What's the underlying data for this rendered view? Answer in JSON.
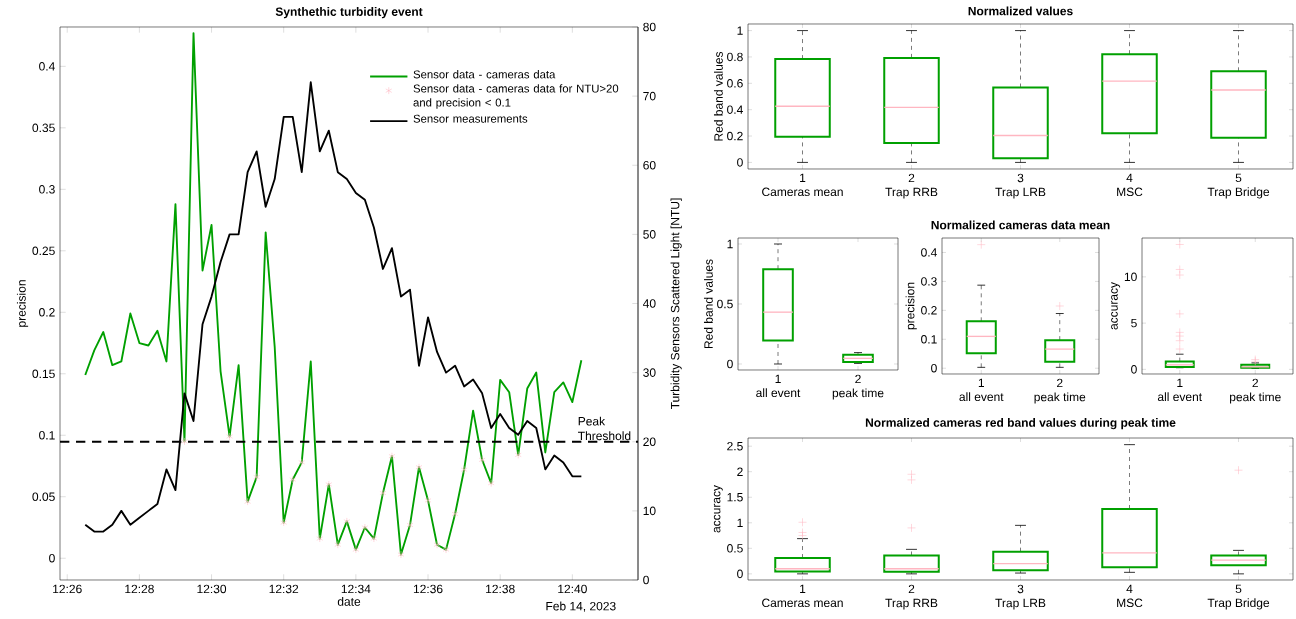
{
  "chart_data": [
    {
      "type": "line",
      "title": "Synthethic turbidity event",
      "xlabel": "date",
      "ylabel": "precision",
      "y2label": "Turbidity Sensors Scattered Light [NTU]",
      "annotations": [
        "Feb 14, 2023"
      ],
      "x": [
        12.44167,
        12.44583,
        12.45,
        12.45417,
        12.45833,
        12.4625,
        12.46667,
        12.47083,
        12.475,
        12.47917,
        12.48333,
        12.4875,
        12.49167,
        12.49583,
        12.5,
        12.50417,
        12.50833,
        12.5125,
        12.51667,
        12.52083,
        12.525,
        12.52917,
        12.53333,
        12.5375,
        12.54167,
        12.54583,
        12.55,
        12.55417,
        12.55833,
        12.5625,
        12.56667,
        12.57083,
        12.575,
        12.57917,
        12.58333,
        12.5875,
        12.59167,
        12.59583,
        12.6,
        12.60417,
        12.60833,
        12.6125,
        12.61667,
        12.62083,
        12.625,
        12.62917,
        12.63333,
        12.6375,
        12.64167,
        12.64583,
        12.65,
        12.65417,
        12.65833,
        12.6625,
        12.66667,
        12.67083
      ],
      "xlim": [
        12.43,
        12.697
      ],
      "xticks": [
        {
          "value": 12.43333,
          "label": "12:26"
        },
        {
          "value": 12.46667,
          "label": "12:28"
        },
        {
          "value": 12.5,
          "label": "12:30"
        },
        {
          "value": 12.53333,
          "label": "12:32"
        },
        {
          "value": 12.56667,
          "label": "12:34"
        },
        {
          "value": 12.6,
          "label": "12:36"
        },
        {
          "value": 12.63333,
          "label": "12:38"
        },
        {
          "value": 12.66667,
          "label": "12:40"
        }
      ],
      "ylim": [
        -0.0177,
        0.432
      ],
      "yticks": [
        0,
        0.05,
        0.1,
        0.15,
        0.2,
        0.25,
        0.3,
        0.35,
        0.4
      ],
      "y2lim": [
        0,
        80
      ],
      "y2ticks": [
        0,
        10,
        20,
        30,
        40,
        50,
        60,
        70,
        80
      ],
      "legend": "top right",
      "ref_lines": [
        {
          "axis": "y2",
          "value": 20,
          "label": "Peak Threshold",
          "color": "#000000",
          "line_style": "dashed"
        }
      ],
      "series": [
        {
          "name": "Sensor data - cameras data",
          "type": "line",
          "color": "#00a000",
          "values": [
            0.149,
            0.169,
            0.184,
            0.157,
            0.16,
            0.199,
            0.175,
            0.173,
            0.185,
            0.16,
            0.288,
            0.095,
            0.427,
            0.234,
            0.271,
            0.152,
            0.099,
            0.157,
            0.046,
            0.066,
            0.265,
            0.172,
            0.029,
            0.064,
            0.078,
            0.16,
            0.016,
            0.06,
            0.011,
            0.03,
            0.007,
            0.025,
            0.016,
            0.053,
            0.083,
            0.003,
            0.027,
            0.074,
            0.047,
            0.011,
            0.007,
            0.036,
            0.072,
            0.12,
            0.08,
            0.061,
            0.145,
            0.135,
            0.084,
            0.138,
            0.151,
            0.086,
            0.135,
            0.143,
            0.127,
            0.161
          ]
        },
        {
          "name": "Sensor data - cameras data for NTU>20 and precision < 0.1",
          "type": "scatter",
          "marker": "cross",
          "color": "#ffb6c1",
          "x": [
            12.4875,
            12.50833,
            12.51667,
            12.52083,
            12.53333,
            12.5375,
            12.54167,
            12.55,
            12.55417,
            12.55833,
            12.5625,
            12.56667,
            12.57083,
            12.575,
            12.57917,
            12.58333,
            12.5875,
            12.59167,
            12.59583,
            12.6,
            12.60417,
            12.60833,
            12.6125,
            12.61667,
            12.625,
            12.62917,
            12.64167
          ],
          "values": [
            0.095,
            0.099,
            0.046,
            0.066,
            0.029,
            0.064,
            0.078,
            0.016,
            0.06,
            0.011,
            0.03,
            0.007,
            0.025,
            0.016,
            0.053,
            0.083,
            0.003,
            0.027,
            0.074,
            0.047,
            0.011,
            0.007,
            0.036,
            0.072,
            0.08,
            0.061,
            0.084
          ]
        },
        {
          "name": "Sensor measurements",
          "type": "line",
          "axis": "y2",
          "color": "#000000",
          "values": [
            8,
            7,
            7,
            8,
            10,
            8,
            9,
            10,
            11,
            16,
            13,
            27,
            23,
            37,
            41,
            46,
            50,
            50,
            59,
            62,
            54,
            58,
            67,
            67,
            59,
            72,
            62,
            65,
            59,
            58,
            56,
            55,
            51,
            45,
            48,
            41,
            42,
            31,
            38,
            33,
            30,
            31,
            28,
            29,
            27,
            22,
            24,
            22,
            21,
            23,
            22,
            16,
            18,
            17,
            15,
            15
          ]
        }
      ]
    },
    {
      "type": "box",
      "title": "Normalized values",
      "ylabel": "Red band values",
      "categories": [
        "1\nCameras mean",
        "2\nTrap RRB",
        "3\nTrap LRB",
        "4\nMSC",
        "5\nTrap Bridge"
      ],
      "ylim": [
        -0.05,
        1.05
      ],
      "yticks": [
        0,
        0.2,
        0.4,
        0.6,
        0.8,
        1
      ],
      "series": [
        {
          "color": "#00a000",
          "boxes": [
            {
              "low": 0,
              "q1": 0.194,
              "median": 0.426,
              "q3": 0.784,
              "high": 1
            },
            {
              "low": 0,
              "q1": 0.148,
              "median": 0.417,
              "q3": 0.793,
              "high": 1
            },
            {
              "low": 0,
              "q1": 0.031,
              "median": 0.204,
              "q3": 0.568,
              "high": 1
            },
            {
              "low": 0,
              "q1": 0.222,
              "median": 0.617,
              "q3": 0.821,
              "high": 1
            },
            {
              "low": 0,
              "q1": 0.188,
              "median": 0.549,
              "q3": 0.691,
              "high": 1
            }
          ]
        }
      ]
    },
    {
      "type": "box",
      "ylabel": "Red band values",
      "categories": [
        "1\nall event",
        "2\npeak time"
      ],
      "ylim": [
        -0.05,
        1.05
      ],
      "yticks": [
        0,
        0.5,
        1
      ],
      "series": [
        {
          "color": "#00a000",
          "boxes": [
            {
              "low": 0,
              "q1": 0.196,
              "median": 0.432,
              "q3": 0.79,
              "high": 1
            },
            {
              "low": 0.005,
              "q1": 0.017,
              "median": 0.047,
              "q3": 0.078,
              "high": 0.095
            }
          ]
        }
      ]
    },
    {
      "type": "box",
      "title": "Normalized cameras data mean",
      "ylabel": "precision",
      "categories": [
        "1\nall event",
        "2\npeak time"
      ],
      "ylim": [
        -0.02,
        0.45
      ],
      "yticks": [
        0,
        0.1,
        0.2,
        0.3,
        0.4
      ],
      "series": [
        {
          "color": "#00a000",
          "boxes": [
            {
              "low": 0.003,
              "q1": 0.052,
              "median": 0.11,
              "q3": 0.162,
              "high": 0.287,
              "outliers": [
                0.427
              ]
            },
            {
              "low": 0.003,
              "q1": 0.022,
              "median": 0.066,
              "q3": 0.097,
              "high": 0.189,
              "outliers": [
                0.215
              ]
            }
          ]
        }
      ]
    },
    {
      "type": "box",
      "ylabel": "accuracy",
      "categories": [
        "1\nall event",
        "2\npeak time"
      ],
      "ylim": [
        -0.5,
        14.2
      ],
      "yticks": [
        0,
        5,
        10
      ],
      "series": [
        {
          "color": "#00a000",
          "boxes": [
            {
              "low": 0.18,
              "q1": 0.27,
              "median": 0.49,
              "q3": 0.84,
              "high": 1.64,
              "outliers": [
                2.2,
                3.1,
                3.6,
                4,
                6,
                10.2,
                10.8,
                13.5
              ]
            },
            {
              "low": 0.1,
              "q1": 0.18,
              "median": 0.27,
              "q3": 0.49,
              "high": 0.7,
              "outliers": [
                0.88,
                1.06
              ]
            }
          ]
        }
      ]
    },
    {
      "type": "box",
      "title": "Normalized cameras red band values during peak time",
      "ylabel": "accuracy",
      "categories": [
        "1\nCameras mean",
        "2\nTrap RRB",
        "3\nTrap LRB",
        "4\nMSC",
        "5\nTrap Bridge"
      ],
      "ylim": [
        -0.12,
        2.66
      ],
      "yticks": [
        0,
        0.5,
        1,
        1.5,
        2,
        2.5
      ],
      "series": [
        {
          "color": "#00a000",
          "boxes": [
            {
              "low": 0,
              "q1": 0.047,
              "median": 0.1,
              "q3": 0.31,
              "high": 0.69,
              "outliers": [
                0.75,
                0.81,
                1.01
              ]
            },
            {
              "low": 0,
              "q1": 0.04,
              "median": 0.1,
              "q3": 0.36,
              "high": 0.48,
              "outliers": [
                0.9,
                1.84,
                1.95
              ]
            },
            {
              "low": 0.016,
              "q1": 0.07,
              "median": 0.2,
              "q3": 0.435,
              "high": 0.95
            },
            {
              "low": 0.03,
              "q1": 0.13,
              "median": 0.41,
              "q3": 1.27,
              "high": 2.53
            },
            {
              "low": 0,
              "q1": 0.17,
              "median": 0.27,
              "q3": 0.36,
              "high": 0.46,
              "outliers": [
                2.03
              ]
            }
          ]
        }
      ]
    }
  ]
}
